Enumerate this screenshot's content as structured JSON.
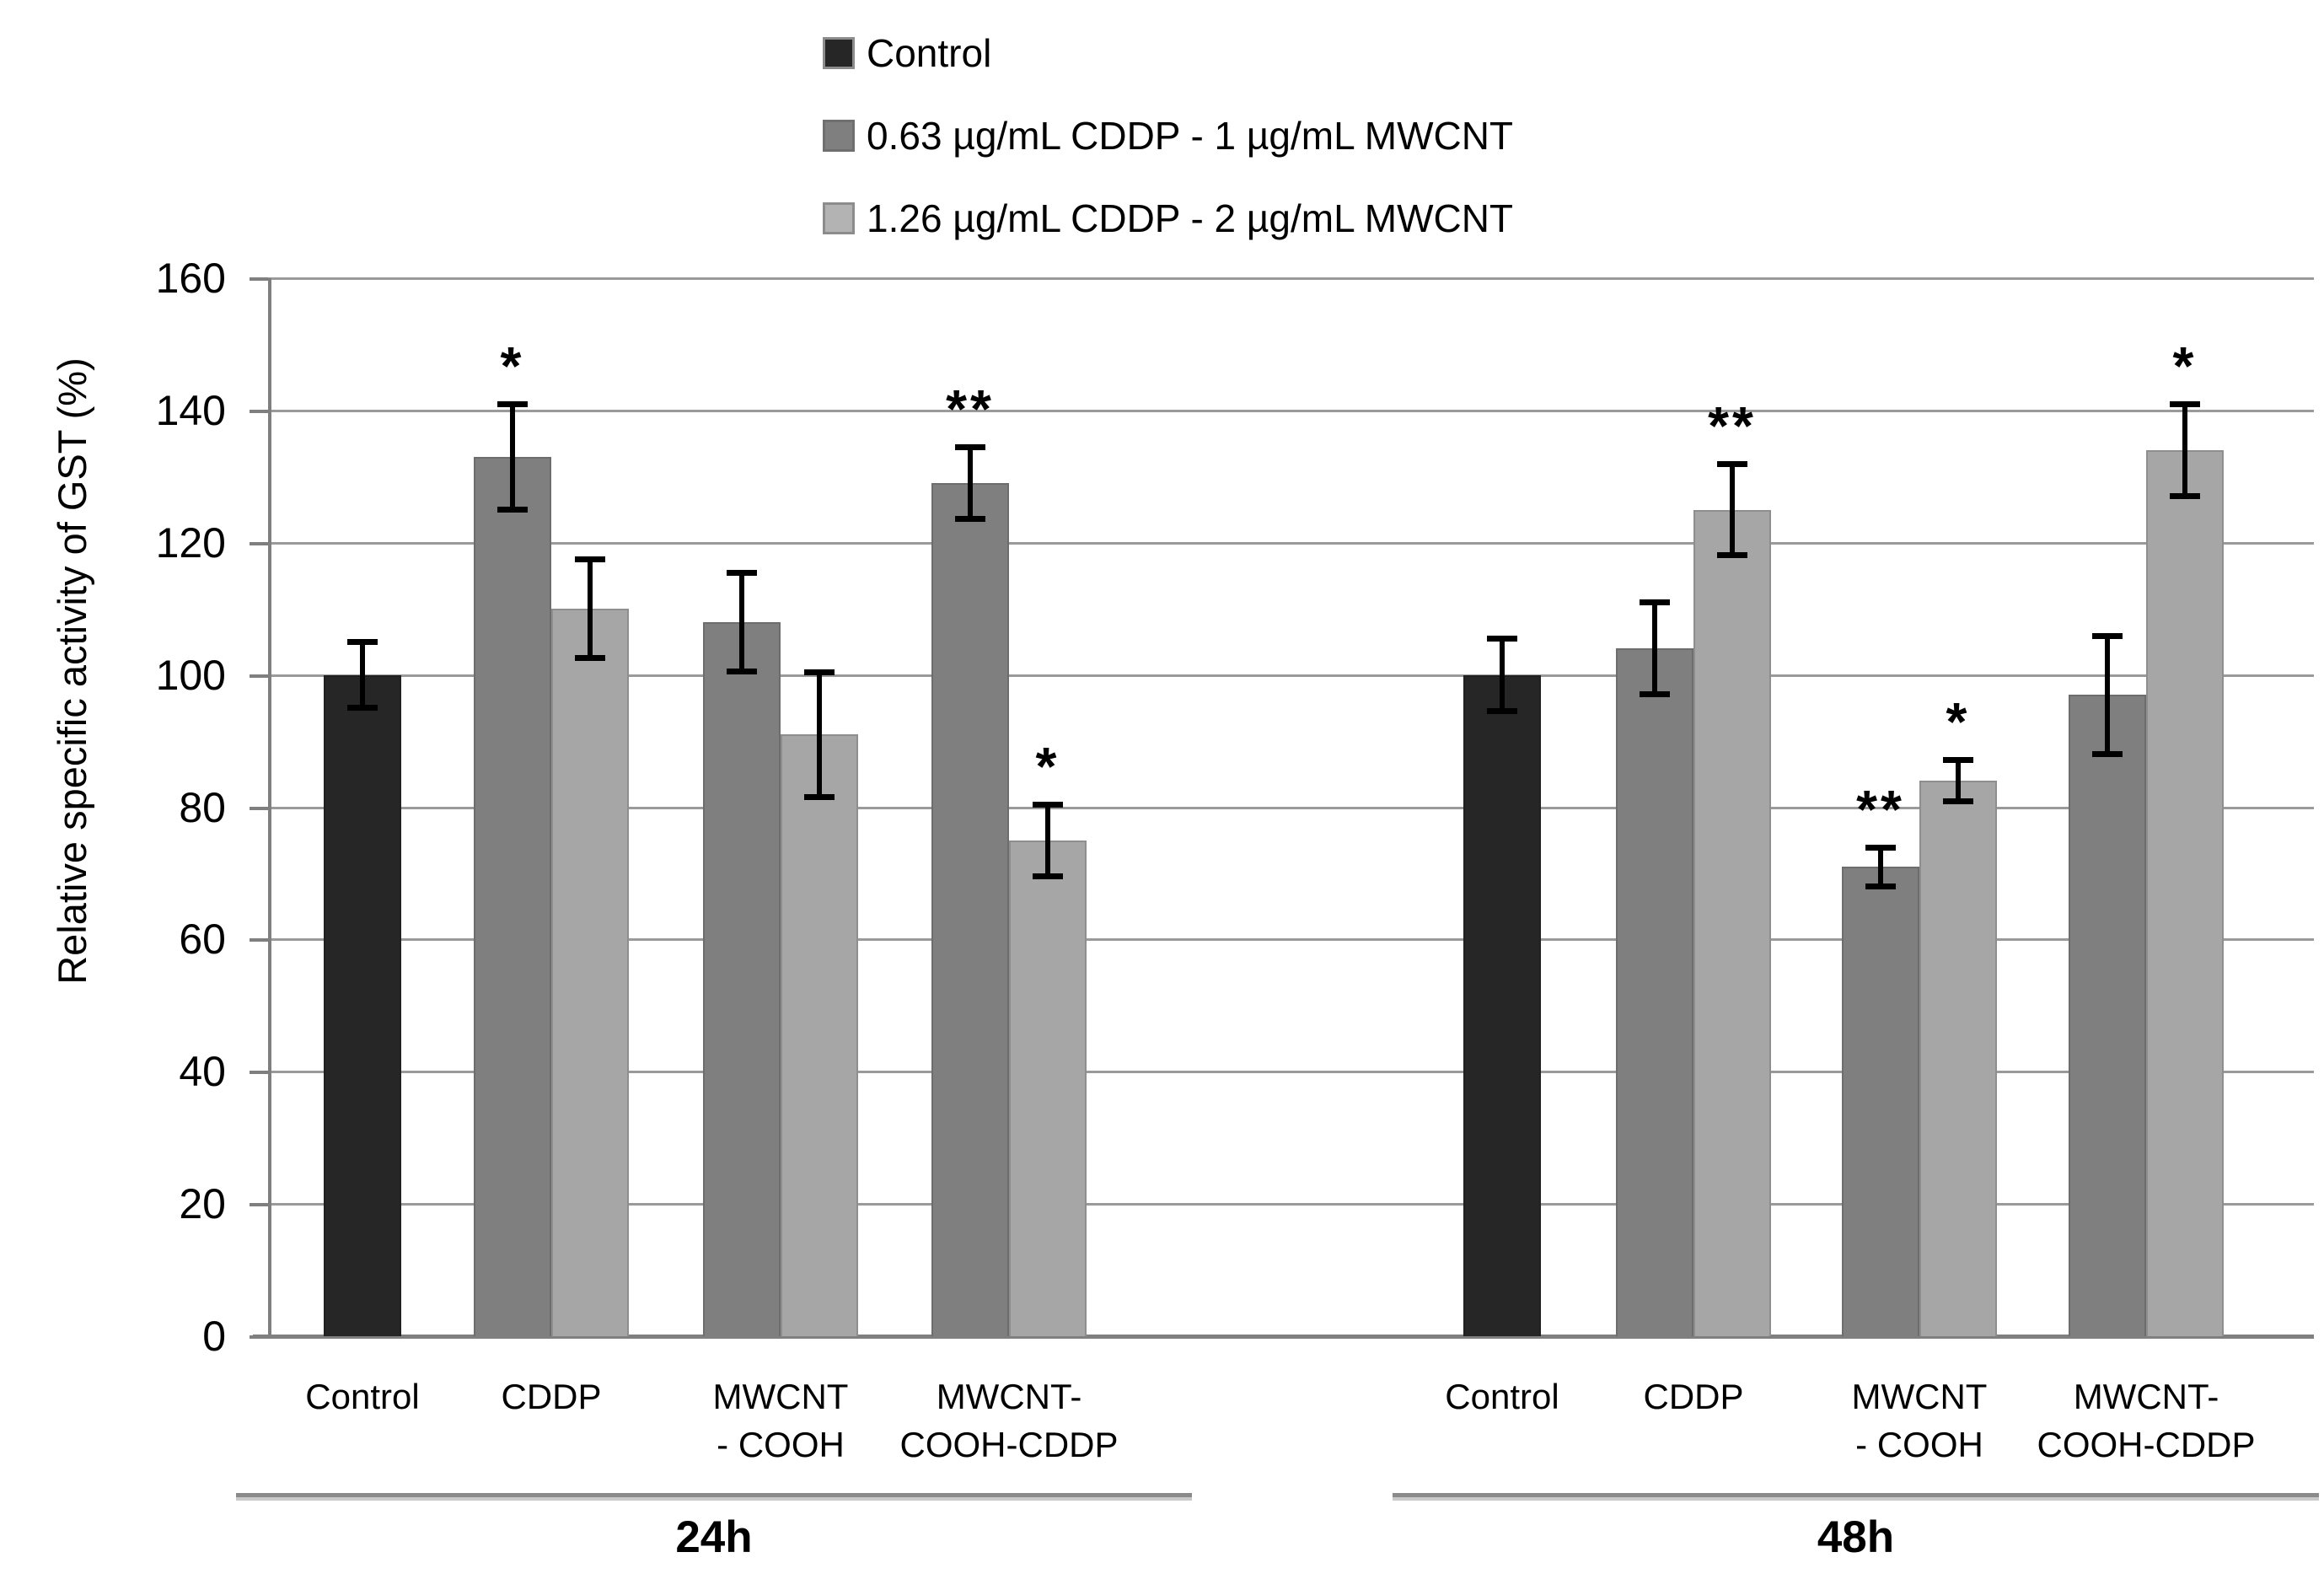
{
  "figure": {
    "background": "#ffffff"
  },
  "chart_data": {
    "type": "bar",
    "title": "",
    "xlabel": "",
    "ylabel": "Relative  specific activity of GST (%)",
    "ylim": [
      0,
      160
    ],
    "ytick_step": 20,
    "grid": true,
    "legend_position": "top-center",
    "error_bars": true,
    "colors": {
      "axis": "#7f7f7f",
      "gridline": "#9a9a9a",
      "error_bar": "#000000",
      "significance": "#000000"
    },
    "series": [
      {
        "name": "Control",
        "color": "#262626",
        "swatch_border": "#8c8c8c"
      },
      {
        "name": "0.63 µg/mL CDDP - 1 µg/mL MWCNT",
        "color": "#7f7f7f",
        "swatch_border": "#6f6f6f"
      },
      {
        "name": "1.26 µg/mL CDDP - 2 µg/mL MWCNT",
        "color": "#a6a6a6",
        "swatch_border": "#8c8c8c"
      }
    ],
    "groups": [
      {
        "label": "24h",
        "categories": [
          {
            "label": "Control",
            "lines": [
              "Control"
            ],
            "bars": [
              {
                "series": 0,
                "value": 100,
                "error": 5,
                "sig": ""
              }
            ]
          },
          {
            "label": "CDDP",
            "lines": [
              "CDDP"
            ],
            "bars": [
              {
                "series": 1,
                "value": 133,
                "error": 8,
                "sig": "*"
              },
              {
                "series": 2,
                "value": 110,
                "error": 7.5,
                "sig": ""
              }
            ]
          },
          {
            "label": "MWCNT - COOH",
            "lines": [
              "MWCNT",
              "- COOH"
            ],
            "bars": [
              {
                "series": 1,
                "value": 108,
                "error": 7.5,
                "sig": ""
              },
              {
                "series": 2,
                "value": 91,
                "error": 9.5,
                "sig": ""
              }
            ]
          },
          {
            "label": "MWCNT- COOH-CDDP",
            "lines": [
              "MWCNT-",
              "COOH-CDDP"
            ],
            "bars": [
              {
                "series": 1,
                "value": 129,
                "error": 5.5,
                "sig": "**"
              },
              {
                "series": 2,
                "value": 75,
                "error": 5.5,
                "sig": "*"
              }
            ]
          }
        ]
      },
      {
        "label": "48h",
        "categories": [
          {
            "label": "Control",
            "lines": [
              "Control"
            ],
            "bars": [
              {
                "series": 0,
                "value": 100,
                "error": 5.5,
                "sig": ""
              }
            ]
          },
          {
            "label": "CDDP",
            "lines": [
              "CDDP"
            ],
            "bars": [
              {
                "series": 1,
                "value": 104,
                "error": 7,
                "sig": ""
              },
              {
                "series": 2,
                "value": 125,
                "error": 7,
                "sig": "**"
              }
            ]
          },
          {
            "label": "MWCNT - COOH",
            "lines": [
              "MWCNT",
              "- COOH"
            ],
            "bars": [
              {
                "series": 1,
                "value": 71,
                "error": 3,
                "sig": "**"
              },
              {
                "series": 2,
                "value": 84,
                "error": 3.2,
                "sig": "*"
              }
            ]
          },
          {
            "label": "MWCNT- COOH-CDDP",
            "lines": [
              "MWCNT-",
              "COOH-CDDP"
            ],
            "bars": [
              {
                "series": 1,
                "value": 97,
                "error": 9,
                "sig": ""
              },
              {
                "series": 2,
                "value": 134,
                "error": 7,
                "sig": "*"
              }
            ]
          }
        ]
      }
    ]
  }
}
